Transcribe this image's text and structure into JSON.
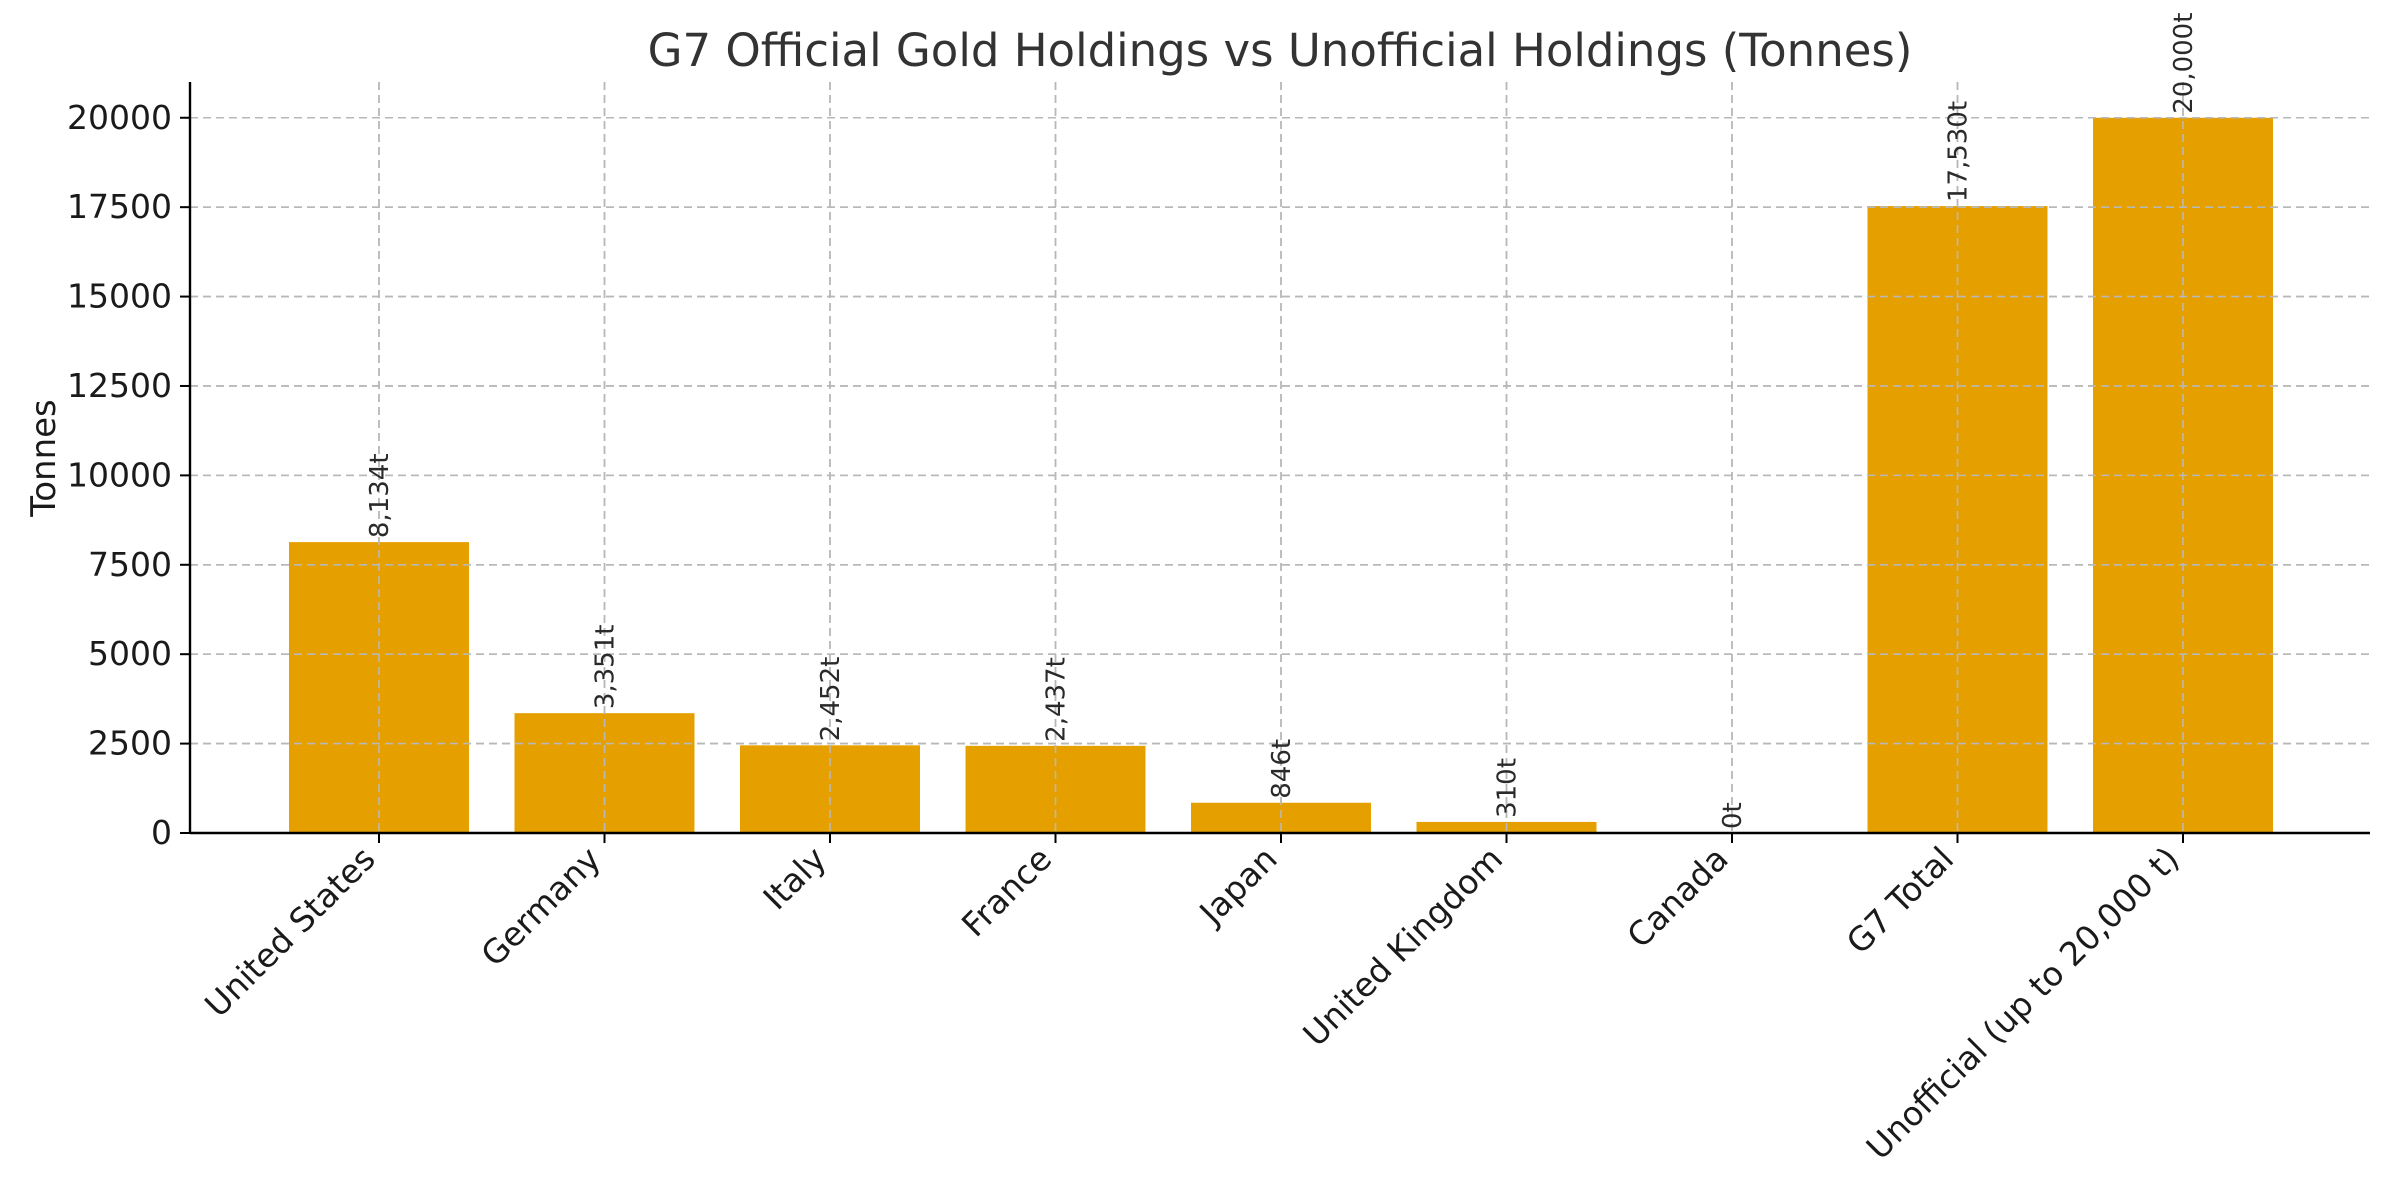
{
  "chart_data": {
    "type": "bar",
    "title": "G7 Official Gold Holdings vs Unofficial Holdings (Tonnes)",
    "xlabel": "",
    "ylabel": "Tonnes",
    "categories": [
      "United States",
      "Germany",
      "Italy",
      "France",
      "Japan",
      "United Kingdom",
      "Canada",
      "G7 Total",
      "Unofficial (up to 20,000 t)"
    ],
    "values": [
      8134,
      3351,
      2452,
      2437,
      846,
      310,
      0,
      17530,
      20000
    ],
    "value_labels": [
      "8,134t",
      "3,351t",
      "2,452t",
      "2,437t",
      "846t",
      "310t",
      "0t",
      "17,530t",
      "20,000t"
    ],
    "ylim": [
      0,
      21000
    ],
    "yticks": [
      0,
      2500,
      5000,
      7500,
      10000,
      12500,
      15000,
      17500,
      20000
    ],
    "ytick_labels": [
      "0",
      "2500",
      "5000",
      "7500",
      "10000",
      "12500",
      "15000",
      "17500",
      "20000"
    ],
    "grid": true,
    "legend": "none",
    "colors": {
      "bar": "#e5a000",
      "grid": "#b8b8b8",
      "axis": "#000000"
    }
  }
}
